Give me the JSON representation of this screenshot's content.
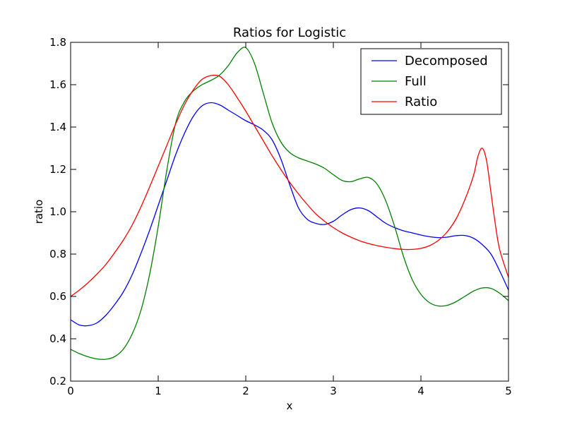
{
  "chart_data": {
    "type": "line",
    "title": "Ratios for Logistic",
    "xlabel": "x",
    "ylabel": "ratio",
    "xlim": [
      0,
      5
    ],
    "ylim": [
      0.2,
      1.8
    ],
    "xticks": [
      0,
      1,
      2,
      3,
      4,
      5
    ],
    "xtick_labels": [
      "0",
      "1",
      "2",
      "3",
      "4",
      "5"
    ],
    "yticks": [
      0.2,
      0.4,
      0.6,
      0.8,
      1.0,
      1.2,
      1.4,
      1.6,
      1.8
    ],
    "ytick_labels": [
      "0.2",
      "0.4",
      "0.6",
      "0.8",
      "1.0",
      "1.2",
      "1.4",
      "1.6",
      "1.8"
    ],
    "grid": false,
    "legend_position": "top-right",
    "series": [
      {
        "name": "Decomposed",
        "color": "#0000ff",
        "points": [
          [
            0,
            0.49
          ],
          [
            0.1,
            0.465
          ],
          [
            0.2,
            0.462
          ],
          [
            0.3,
            0.475
          ],
          [
            0.4,
            0.51
          ],
          [
            0.5,
            0.56
          ],
          [
            0.6,
            0.62
          ],
          [
            0.7,
            0.7
          ],
          [
            0.8,
            0.8
          ],
          [
            0.9,
            0.91
          ],
          [
            1.0,
            1.03
          ],
          [
            1.1,
            1.15
          ],
          [
            1.2,
            1.27
          ],
          [
            1.3,
            1.37
          ],
          [
            1.4,
            1.45
          ],
          [
            1.5,
            1.5
          ],
          [
            1.6,
            1.515
          ],
          [
            1.7,
            1.505
          ],
          [
            1.8,
            1.48
          ],
          [
            1.9,
            1.455
          ],
          [
            2.0,
            1.43
          ],
          [
            2.1,
            1.41
          ],
          [
            2.2,
            1.385
          ],
          [
            2.3,
            1.34
          ],
          [
            2.4,
            1.25
          ],
          [
            2.5,
            1.13
          ],
          [
            2.6,
            1.02
          ],
          [
            2.7,
            0.965
          ],
          [
            2.8,
            0.945
          ],
          [
            2.9,
            0.94
          ],
          [
            3.0,
            0.955
          ],
          [
            3.1,
            0.985
          ],
          [
            3.2,
            1.01
          ],
          [
            3.3,
            1.018
          ],
          [
            3.4,
            1.005
          ],
          [
            3.5,
            0.975
          ],
          [
            3.6,
            0.945
          ],
          [
            3.7,
            0.925
          ],
          [
            3.8,
            0.91
          ],
          [
            3.9,
            0.9
          ],
          [
            4.0,
            0.89
          ],
          [
            4.1,
            0.882
          ],
          [
            4.2,
            0.878
          ],
          [
            4.3,
            0.88
          ],
          [
            4.4,
            0.887
          ],
          [
            4.5,
            0.888
          ],
          [
            4.6,
            0.875
          ],
          [
            4.7,
            0.845
          ],
          [
            4.8,
            0.8
          ],
          [
            4.9,
            0.72
          ],
          [
            5.0,
            0.63
          ]
        ]
      },
      {
        "name": "Full",
        "color": "#008000",
        "points": [
          [
            0,
            0.35
          ],
          [
            0.1,
            0.33
          ],
          [
            0.2,
            0.315
          ],
          [
            0.3,
            0.305
          ],
          [
            0.4,
            0.303
          ],
          [
            0.5,
            0.315
          ],
          [
            0.6,
            0.35
          ],
          [
            0.7,
            0.42
          ],
          [
            0.8,
            0.53
          ],
          [
            0.9,
            0.7
          ],
          [
            1.0,
            0.93
          ],
          [
            1.1,
            1.2
          ],
          [
            1.2,
            1.42
          ],
          [
            1.3,
            1.52
          ],
          [
            1.4,
            1.57
          ],
          [
            1.5,
            1.6
          ],
          [
            1.6,
            1.62
          ],
          [
            1.7,
            1.645
          ],
          [
            1.8,
            1.69
          ],
          [
            1.9,
            1.75
          ],
          [
            2.0,
            1.775
          ],
          [
            2.1,
            1.7
          ],
          [
            2.2,
            1.56
          ],
          [
            2.3,
            1.42
          ],
          [
            2.4,
            1.33
          ],
          [
            2.5,
            1.28
          ],
          [
            2.6,
            1.255
          ],
          [
            2.7,
            1.24
          ],
          [
            2.8,
            1.225
          ],
          [
            2.9,
            1.205
          ],
          [
            3.0,
            1.175
          ],
          [
            3.1,
            1.148
          ],
          [
            3.2,
            1.142
          ],
          [
            3.3,
            1.155
          ],
          [
            3.4,
            1.162
          ],
          [
            3.5,
            1.13
          ],
          [
            3.6,
            1.05
          ],
          [
            3.7,
            0.93
          ],
          [
            3.8,
            0.79
          ],
          [
            3.9,
            0.68
          ],
          [
            4.0,
            0.61
          ],
          [
            4.1,
            0.57
          ],
          [
            4.2,
            0.555
          ],
          [
            4.3,
            0.558
          ],
          [
            4.4,
            0.575
          ],
          [
            4.5,
            0.6
          ],
          [
            4.6,
            0.625
          ],
          [
            4.7,
            0.64
          ],
          [
            4.8,
            0.638
          ],
          [
            4.9,
            0.615
          ],
          [
            5.0,
            0.58
          ]
        ]
      },
      {
        "name": "Ratio",
        "color": "#ff0000",
        "points": [
          [
            0,
            0.6
          ],
          [
            0.1,
            0.63
          ],
          [
            0.2,
            0.665
          ],
          [
            0.3,
            0.705
          ],
          [
            0.4,
            0.75
          ],
          [
            0.5,
            0.805
          ],
          [
            0.6,
            0.865
          ],
          [
            0.7,
            0.935
          ],
          [
            0.8,
            1.02
          ],
          [
            0.9,
            1.115
          ],
          [
            1.0,
            1.215
          ],
          [
            1.1,
            1.315
          ],
          [
            1.2,
            1.415
          ],
          [
            1.3,
            1.505
          ],
          [
            1.4,
            1.575
          ],
          [
            1.5,
            1.625
          ],
          [
            1.6,
            1.643
          ],
          [
            1.7,
            1.64
          ],
          [
            1.8,
            1.6
          ],
          [
            1.9,
            1.54
          ],
          [
            2.0,
            1.475
          ],
          [
            2.1,
            1.405
          ],
          [
            2.2,
            1.335
          ],
          [
            2.3,
            1.265
          ],
          [
            2.4,
            1.2
          ],
          [
            2.5,
            1.14
          ],
          [
            2.6,
            1.085
          ],
          [
            2.7,
            1.035
          ],
          [
            2.8,
            0.99
          ],
          [
            2.9,
            0.955
          ],
          [
            3.0,
            0.925
          ],
          [
            3.1,
            0.9
          ],
          [
            3.2,
            0.88
          ],
          [
            3.3,
            0.863
          ],
          [
            3.4,
            0.85
          ],
          [
            3.5,
            0.84
          ],
          [
            3.6,
            0.832
          ],
          [
            3.7,
            0.826
          ],
          [
            3.8,
            0.822
          ],
          [
            3.9,
            0.822
          ],
          [
            4.0,
            0.827
          ],
          [
            4.1,
            0.84
          ],
          [
            4.2,
            0.865
          ],
          [
            4.3,
            0.905
          ],
          [
            4.4,
            0.965
          ],
          [
            4.5,
            1.055
          ],
          [
            4.6,
            1.17
          ],
          [
            4.65,
            1.26
          ],
          [
            4.7,
            1.3
          ],
          [
            4.75,
            1.24
          ],
          [
            4.8,
            1.09
          ],
          [
            4.85,
            0.94
          ],
          [
            4.9,
            0.82
          ],
          [
            5.0,
            0.69
          ]
        ]
      }
    ]
  }
}
